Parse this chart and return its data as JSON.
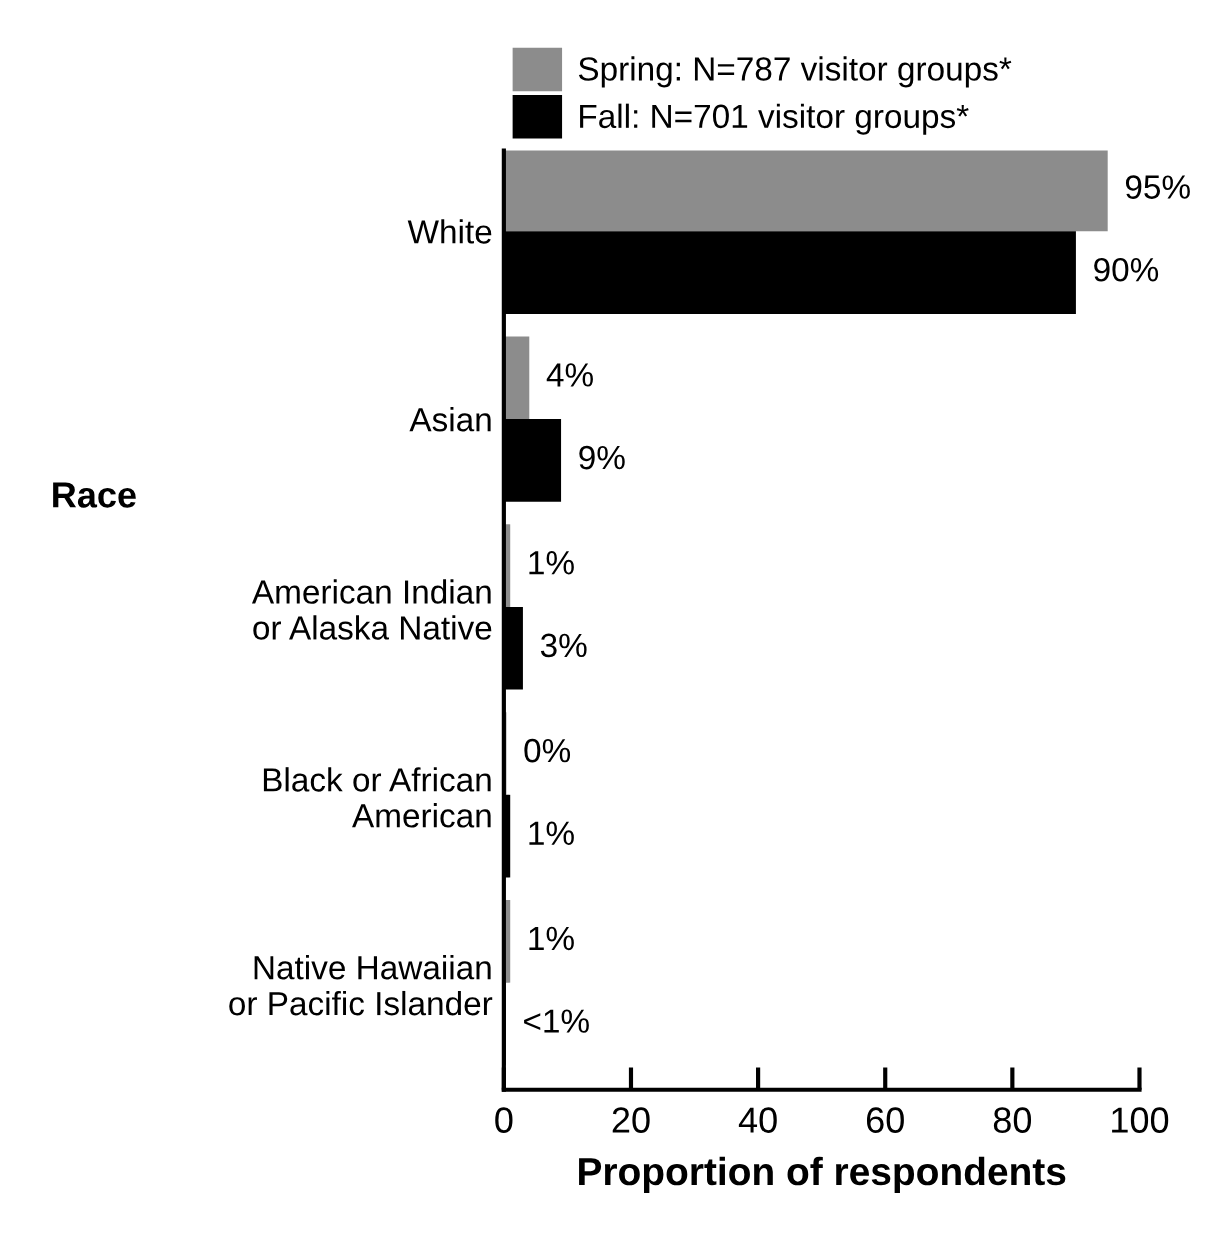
{
  "chart_data": {
    "type": "bar",
    "orientation": "horizontal",
    "ylabel": "Race",
    "xlabel": "Proportion of respondents",
    "categories": [
      "White",
      "Asian",
      "American Indian\nor Alaska Native",
      "Black or African\nAmerican",
      "Native Hawaiian\nor Pacific Islander"
    ],
    "series": [
      {
        "name": "Spring: N=787 visitor groups*",
        "color": "#8c8c8c",
        "values": [
          95,
          4,
          1,
          0.4,
          1
        ],
        "value_labels": [
          "95%",
          "4%",
          "1%",
          "0%",
          "1%"
        ]
      },
      {
        "name": "Fall: N=701 visitor groups*",
        "color": "#000000",
        "values": [
          90,
          9,
          3,
          1,
          0.3
        ],
        "value_labels": [
          "90%",
          "9%",
          "3%",
          "1%",
          "<1%"
        ]
      }
    ],
    "xlim": [
      0,
      100
    ],
    "xticks": [
      0,
      20,
      40,
      60,
      80,
      100
    ],
    "legend": "top left",
    "grid": false
  }
}
